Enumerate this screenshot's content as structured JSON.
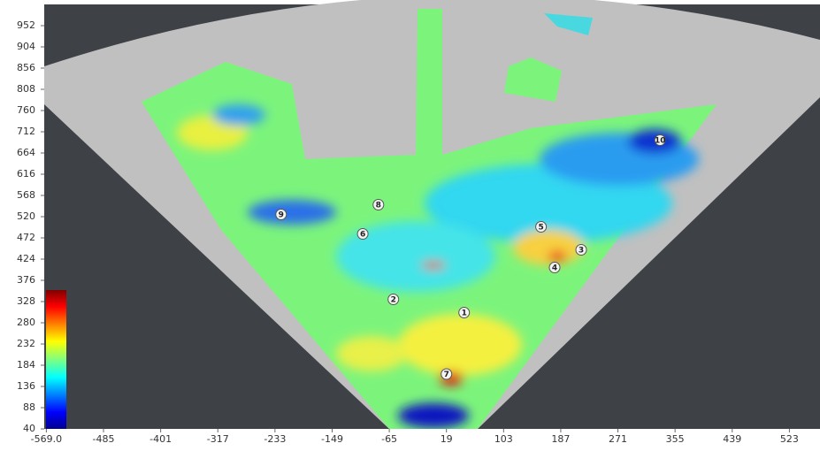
{
  "chart_data": {
    "type": "heatmap",
    "xlim": [
      -569,
      568
    ],
    "ylim": [
      40,
      1000
    ],
    "xticks": [
      {
        "value": -569,
        "label": "-569.0"
      },
      -485,
      -401,
      -317,
      -233,
      -149,
      -65,
      19,
      103,
      187,
      271,
      355,
      439,
      523
    ],
    "yticks": [
      40,
      88,
      136,
      184,
      232,
      280,
      328,
      376,
      424,
      472,
      520,
      568,
      616,
      664,
      712,
      760,
      808,
      856,
      904,
      952
    ],
    "markers": [
      {
        "label": "1",
        "x": 45,
        "y": 303
      },
      {
        "label": "2",
        "x": -59,
        "y": 333
      },
      {
        "label": "3",
        "x": 217,
        "y": 445
      },
      {
        "label": "4",
        "x": 178,
        "y": 405
      },
      {
        "label": "5",
        "x": 158,
        "y": 497
      },
      {
        "label": "6",
        "x": -104,
        "y": 481
      },
      {
        "label": "7",
        "x": 19,
        "y": 164
      },
      {
        "label": "8",
        "x": -81,
        "y": 547
      },
      {
        "label": "9",
        "x": -224,
        "y": 525
      },
      {
        "label": "10",
        "x": 333,
        "y": 693
      }
    ]
  }
}
